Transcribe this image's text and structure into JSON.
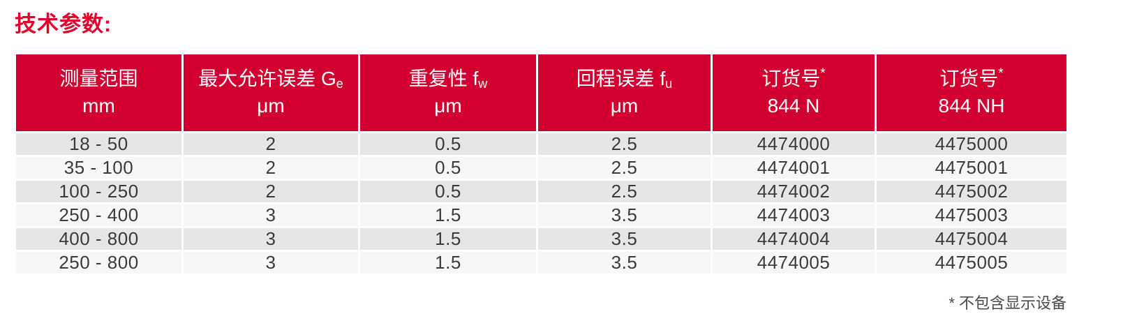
{
  "page": {
    "title": "技术参数:",
    "footnote": "* 不包含显示设备"
  },
  "colors": {
    "title_red": "#e2032d",
    "header_red": "#d20030",
    "row_gray": "#e6e6e6",
    "row_light": "#f6f7f7",
    "cell_text": "#3d3b3a",
    "header_text": "#ffffff"
  },
  "table": {
    "headers": [
      {
        "label": "测量范围",
        "sub": "",
        "sup": "",
        "unit": "mm"
      },
      {
        "label": "最大允许误差 G",
        "sub": "e",
        "sup": "",
        "unit": "μm"
      },
      {
        "label": "重复性 f",
        "sub": "w",
        "sup": "",
        "unit": "μm"
      },
      {
        "label": "回程误差 f",
        "sub": "u",
        "sup": "",
        "unit": "μm"
      },
      {
        "label": "订货号",
        "sub": "",
        "sup": "*",
        "unit": "844 N"
      },
      {
        "label": "订货号",
        "sub": "",
        "sup": "*",
        "unit": "844 NH"
      }
    ],
    "rows": [
      [
        "18 - 50",
        "2",
        "0.5",
        "2.5",
        "4474000",
        "4475000"
      ],
      [
        "35 - 100",
        "2",
        "0.5",
        "2.5",
        "4474001",
        "4475001"
      ],
      [
        "100 - 250",
        "2",
        "0.5",
        "2.5",
        "4474002",
        "4475002"
      ],
      [
        "250 - 400",
        "3",
        "1.5",
        "3.5",
        "4474003",
        "4475003"
      ],
      [
        "400 - 800",
        "3",
        "1.5",
        "3.5",
        "4474004",
        "4475004"
      ],
      [
        "250 - 800",
        "3",
        "1.5",
        "3.5",
        "4474005",
        "4475005"
      ]
    ]
  }
}
